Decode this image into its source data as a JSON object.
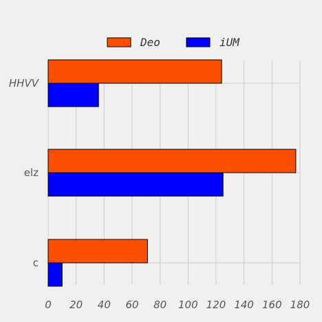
{
  "chart_data": {
    "type": "bar",
    "orientation": "horizontal",
    "categories": [
      "HHVV",
      "elz",
      "c"
    ],
    "series": [
      {
        "name": "Deo",
        "color": "#fc4f00",
        "values": [
          124,
          177,
          71
        ]
      },
      {
        "name": "iUM",
        "color": "#0000ff",
        "values": [
          36,
          125,
          10
        ]
      }
    ],
    "xlim": [
      0,
      180
    ],
    "xticks": [
      0,
      20,
      40,
      60,
      80,
      100,
      120,
      140,
      160,
      180
    ],
    "grid": true,
    "legend_position": "top-center"
  }
}
